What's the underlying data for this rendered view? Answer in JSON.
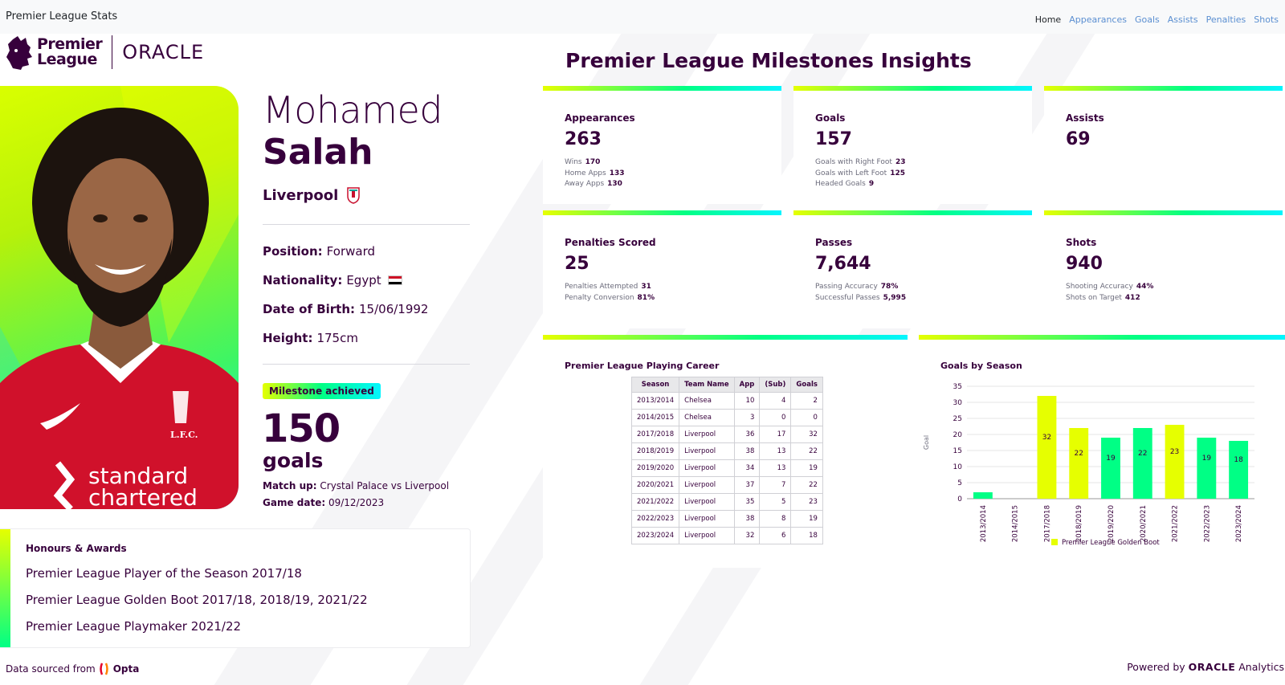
{
  "app": {
    "title": "Premier League Stats"
  },
  "nav": {
    "items": [
      {
        "label": "Home",
        "active": true
      },
      {
        "label": "Appearances",
        "active": false
      },
      {
        "label": "Goals",
        "active": false
      },
      {
        "label": "Assists",
        "active": false
      },
      {
        "label": "Penalties",
        "active": false
      },
      {
        "label": "Shots",
        "active": false
      }
    ]
  },
  "brand": {
    "league_line1": "Premier",
    "league_line2": "League",
    "partner": "ORACLE"
  },
  "player": {
    "first_name": "Mohamed",
    "last_name": "Salah",
    "club": "Liverpool",
    "position_label": "Position:",
    "position": "Forward",
    "nationality_label": "Nationality:",
    "nationality": "Egypt",
    "dob_label": "Date of Birth:",
    "dob": "15/06/1992",
    "height_label": "Height:",
    "height": "175cm"
  },
  "milestone": {
    "badge": "Milestone achieved",
    "number": "150",
    "unit": "goals",
    "match_label": "Match up:",
    "match": "Crystal Palace vs Liverpool",
    "date_label": "Game date:",
    "date": "09/12/2023"
  },
  "honours": {
    "title": "Honours & Awards",
    "items": [
      "Premier League Player of the Season 2017/18",
      "Premier League Golden Boot 2017/18, 2018/19, 2021/22",
      "Premier League Playmaker 2021/22"
    ]
  },
  "footer": {
    "sourced": "Data sourced from",
    "opta": "Opta",
    "powered": "Powered by",
    "oracle": "ORACLE",
    "analytics": "Analytics"
  },
  "insights": {
    "title": "Premier League Milestones Insights",
    "cards": [
      {
        "label": "Appearances",
        "value": "263",
        "subs": [
          {
            "k": "Wins",
            "v": "170"
          },
          {
            "k": "Home Apps",
            "v": "133"
          },
          {
            "k": "Away Apps",
            "v": "130"
          }
        ]
      },
      {
        "label": "Goals",
        "value": "157",
        "subs": [
          {
            "k": "Goals with Right Foot",
            "v": "23"
          },
          {
            "k": "Goals with Left Foot",
            "v": "125"
          },
          {
            "k": "Headed Goals",
            "v": "9"
          }
        ]
      },
      {
        "label": "Assists",
        "value": "69",
        "subs": []
      },
      {
        "label": "Penalties Scored",
        "value": "25",
        "subs": [
          {
            "k": "Penalties Attempted",
            "v": "31"
          },
          {
            "k": "Penalty Conversion",
            "v": "81%"
          }
        ]
      },
      {
        "label": "Passes",
        "value": "7,644",
        "subs": [
          {
            "k": "Passing Accuracy",
            "v": "78%"
          },
          {
            "k": "Successful Passes",
            "v": "5,995"
          }
        ]
      },
      {
        "label": "Shots",
        "value": "940",
        "subs": [
          {
            "k": "Shooting Accuracy",
            "v": "44%"
          },
          {
            "k": "Shots on Target",
            "v": "412"
          }
        ]
      }
    ]
  },
  "career": {
    "title": "Premier League Playing Career",
    "headers": [
      "Season",
      "Team Name",
      "App",
      "(Sub)",
      "Goals"
    ],
    "rows": [
      [
        "2013/2014",
        "Chelsea",
        "10",
        "4",
        "2"
      ],
      [
        "2014/2015",
        "Chelsea",
        "3",
        "0",
        "0"
      ],
      [
        "2017/2018",
        "Liverpool",
        "36",
        "17",
        "32"
      ],
      [
        "2018/2019",
        "Liverpool",
        "38",
        "13",
        "22"
      ],
      [
        "2019/2020",
        "Liverpool",
        "34",
        "13",
        "19"
      ],
      [
        "2020/2021",
        "Liverpool",
        "37",
        "7",
        "22"
      ],
      [
        "2021/2022",
        "Liverpool",
        "35",
        "5",
        "23"
      ],
      [
        "2022/2023",
        "Liverpool",
        "38",
        "8",
        "19"
      ],
      [
        "2023/2024",
        "Liverpool",
        "32",
        "6",
        "18"
      ]
    ]
  },
  "colors": {
    "purple": "#37003c",
    "golden_boot": "#e6ff00",
    "default_bar": "#00ff85"
  },
  "chart_data": {
    "type": "bar",
    "title": "Goals by Season",
    "ylabel": "Goal",
    "xlabel": "",
    "ylim": [
      0,
      35
    ],
    "yticks": [
      0,
      5,
      10,
      15,
      20,
      25,
      30,
      35
    ],
    "categories": [
      "2013/2014",
      "2014/2015",
      "2017/2018",
      "2018/2019",
      "2019/2020",
      "2020/2021",
      "2021/2022",
      "2022/2023",
      "2023/2024"
    ],
    "values": [
      2,
      0,
      32,
      22,
      19,
      22,
      23,
      19,
      18
    ],
    "golden_boot": [
      false,
      false,
      true,
      true,
      false,
      false,
      true,
      false,
      false
    ],
    "legend": "Premier League Golden Boot",
    "legend_position": "bottom",
    "grid": true
  }
}
